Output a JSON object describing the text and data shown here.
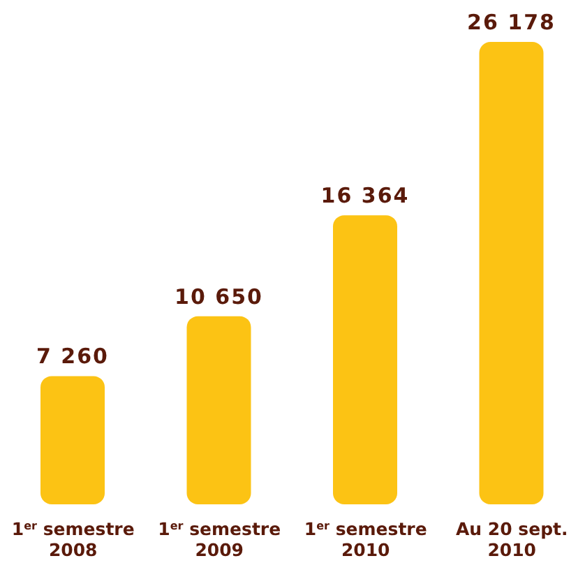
{
  "chart_data": {
    "type": "bar",
    "categories": [
      "1$^{er}$ semestre\n2008",
      "1$^{er}$ semestre\n2009",
      "1$^{er}$ semestre\n2010",
      "Au 20 sept.\n2010"
    ],
    "values": [
      7260,
      10650,
      16364,
      26178
    ],
    "value_labels": [
      "7 260",
      "10 650",
      "16 364",
      "26 178"
    ],
    "color": "#fcc314",
    "grid": false,
    "legend": false
  }
}
